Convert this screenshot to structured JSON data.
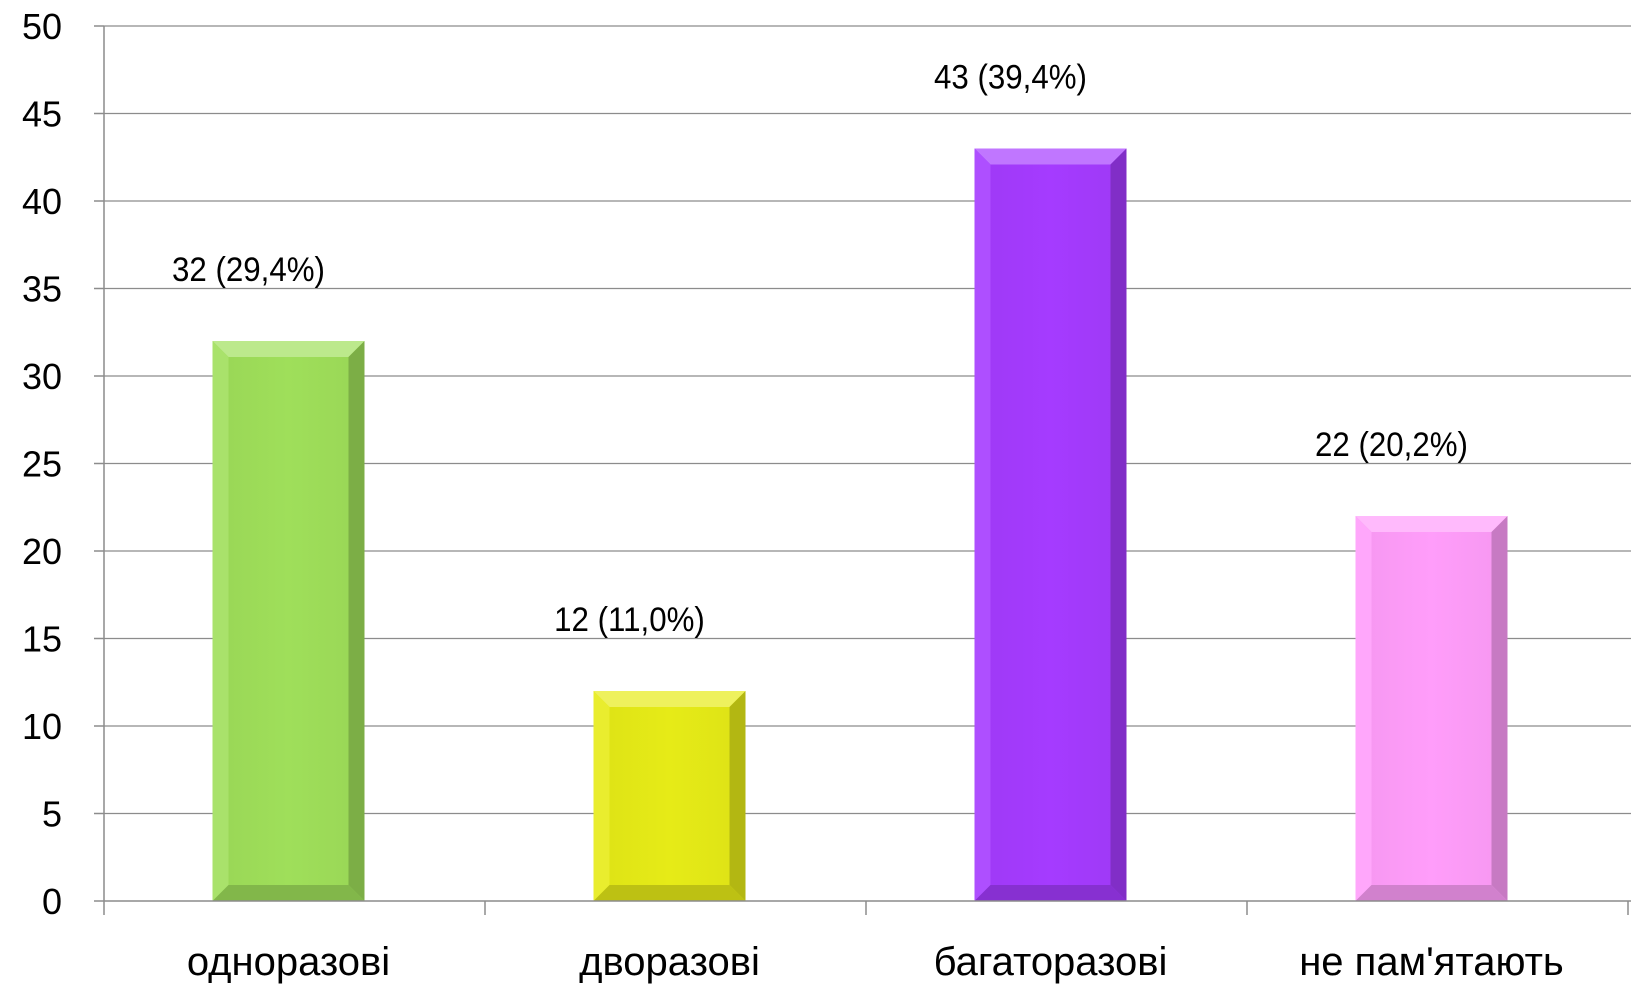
{
  "chart_data": {
    "type": "bar",
    "categories": [
      "одноразові",
      "дворазові",
      "багаторазові",
      "не пам'ятають"
    ],
    "values": [
      32,
      12,
      43,
      22
    ],
    "data_labels": [
      "32 (29,4%)",
      "12 (11,0%)",
      "43 (39,4%)",
      "22 (20,2%)"
    ],
    "colors": [
      "#9fdf5a",
      "#e6eb17",
      "#a53bff",
      "#ff9dfa"
    ],
    "ylim": [
      0,
      50
    ],
    "y_ticks": [
      0,
      5,
      10,
      15,
      20,
      25,
      30,
      35,
      40,
      45,
      50
    ],
    "grid": true,
    "legend": "none",
    "title": "",
    "xlabel": "",
    "ylabel": ""
  }
}
